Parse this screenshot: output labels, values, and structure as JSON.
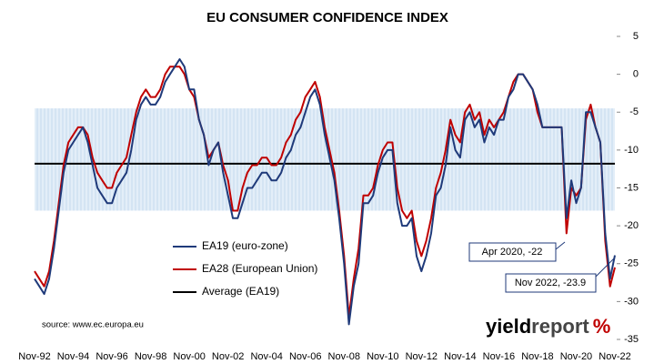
{
  "chart_data": {
    "type": "line",
    "title": "EU CONSUMER CONFIDENCE INDEX",
    "categories": [
      "Nov-92",
      null,
      null,
      null,
      null,
      null,
      null,
      null,
      "Nov-94",
      null,
      null,
      null,
      null,
      null,
      null,
      null,
      "Nov-96",
      null,
      null,
      null,
      null,
      null,
      null,
      null,
      "Nov-98",
      null,
      null,
      null,
      null,
      null,
      null,
      null,
      "Nov-00",
      null,
      null,
      null,
      null,
      null,
      null,
      null,
      "Nov-02",
      null,
      null,
      null,
      null,
      null,
      null,
      null,
      "Nov-04",
      null,
      null,
      null,
      null,
      null,
      null,
      null,
      "Nov-06",
      null,
      null,
      null,
      null,
      null,
      null,
      null,
      "Nov-08",
      null,
      null,
      null,
      null,
      null,
      null,
      null,
      "Nov-10",
      null,
      null,
      null,
      null,
      null,
      null,
      null,
      "Nov-12",
      null,
      null,
      null,
      null,
      null,
      null,
      null,
      "Nov-14",
      null,
      null,
      null,
      null,
      null,
      null,
      null,
      "Nov-16",
      null,
      null,
      null,
      null,
      null,
      null,
      null,
      "Nov-18",
      null,
      null,
      null,
      null,
      null,
      null,
      null,
      "Nov-20",
      null,
      null,
      null,
      null,
      null,
      null,
      null,
      "Nov-22"
    ],
    "series": [
      {
        "name": "EA19 (euro-zone)",
        "color": "#1f3a7a",
        "values": [
          -27,
          -28,
          -29,
          -27,
          -23,
          -18,
          -13,
          -10,
          -9,
          -8,
          -7,
          -9,
          -12,
          -15,
          -16,
          -17,
          -17,
          -15,
          -14,
          -13,
          -10,
          -6,
          -4,
          -3,
          -4,
          -4,
          -3,
          -1,
          0,
          1,
          2,
          1,
          -2,
          -2,
          -6,
          -8,
          -12,
          -10,
          -9,
          -13,
          -16,
          -19,
          -19,
          -17,
          -15,
          -15,
          -14,
          -13,
          -13,
          -14,
          -14,
          -13,
          -11,
          -10,
          -8,
          -7,
          -5,
          -3,
          -2,
          -4,
          -8,
          -11,
          -14,
          -19,
          -25,
          -33,
          -28,
          -25,
          -17,
          -17,
          -16,
          -13,
          -11,
          -10,
          -10,
          -17,
          -20,
          -20,
          -19,
          -24,
          -26,
          -24,
          -21,
          -16,
          -15,
          -12,
          -7,
          -10,
          -11,
          -6,
          -5,
          -7,
          -6,
          -9,
          -7,
          -8,
          -6,
          -6,
          -3,
          -2,
          0,
          0,
          -1,
          -2,
          -4,
          -7,
          -7,
          -7,
          -7,
          -7,
          -19,
          -14,
          -17,
          -15,
          -5,
          -5,
          -7,
          -9,
          -21,
          -27,
          -23.9
        ]
      },
      {
        "name": "EA28 (European Union)",
        "color": "#c00000",
        "values": [
          -26,
          -27,
          -28,
          -26,
          -22,
          -17,
          -12,
          -9,
          -8,
          -7,
          -7,
          -8,
          -11,
          -13,
          -14,
          -15,
          -15,
          -13,
          -12,
          -11,
          -8,
          -5,
          -3,
          -2,
          -3,
          -3,
          -2,
          0,
          1,
          1,
          1,
          0,
          -2,
          -3,
          -6,
          -8,
          -11,
          -10,
          -9,
          -12,
          -14,
          -18,
          -18,
          -15,
          -13,
          -12,
          -12,
          -11,
          -11,
          -12,
          -12,
          -11,
          -9,
          -8,
          -6,
          -5,
          -3,
          -2,
          -1,
          -3,
          -7,
          -10,
          -13,
          -18,
          -24,
          -32,
          -27,
          -23,
          -16,
          -16,
          -15,
          -12,
          -10,
          -9,
          -9,
          -15,
          -18,
          -19,
          -18,
          -22,
          -24,
          -22,
          -19,
          -15,
          -13,
          -10,
          -6,
          -8,
          -9,
          -5,
          -4,
          -6,
          -5,
          -8,
          -6,
          -7,
          -6,
          -5,
          -3,
          -1,
          0,
          0,
          -1,
          -2,
          -5,
          -7,
          -7,
          -7,
          -7,
          -7,
          -21,
          -15,
          -16,
          -15,
          -6,
          -4,
          -7,
          -9,
          -22,
          -28,
          -25.5
        ]
      }
    ],
    "average": {
      "name": "Average (EA19)",
      "color": "#000000",
      "value": -11.8
    },
    "band": [
      -18,
      -4.5
    ],
    "ylim": [
      -35,
      5
    ],
    "yticks": [
      5,
      0,
      -5,
      -10,
      -15,
      -20,
      -25,
      -30,
      -35
    ],
    "annotations": [
      "Apr 2020, -22",
      "Nov 2022, -23.9"
    ],
    "source": "source: www.ec.europa.eu",
    "logo": {
      "bold": "yield",
      "plain": "report",
      "mark": "%"
    }
  }
}
